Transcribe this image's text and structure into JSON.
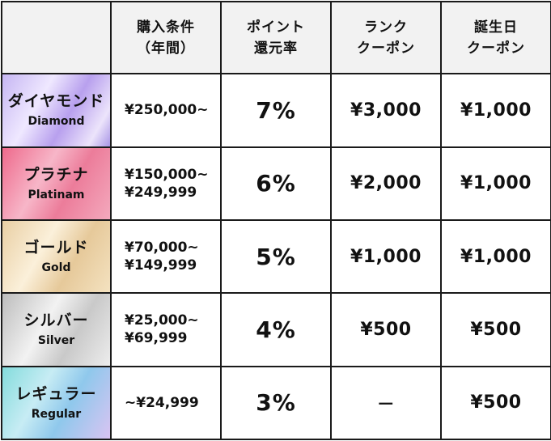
{
  "header": {
    "rank": "",
    "condition_line1": "購入条件",
    "condition_line2": "（年間）",
    "point_line1": "ポイント",
    "point_line2": "還元率",
    "rank_coupon_line1": "ランク",
    "rank_coupon_line2": "クーポン",
    "birthday_coupon_line1": "誕生日",
    "birthday_coupon_line2": "クーポン"
  },
  "rows": [
    {
      "key": "diamond",
      "name_jp": "ダイヤモンド",
      "name_en": "Diamond",
      "condition_line1": "¥250,000~",
      "condition_line2": "",
      "rate": "7%",
      "rank_coupon": "¥3,000",
      "birthday_coupon": "¥1,000",
      "color": "#c6b6f3"
    },
    {
      "key": "platinum",
      "name_jp": "プラチナ",
      "name_en": "Platinam",
      "condition_line1": "¥150,000~",
      "condition_line2": "¥249,999",
      "rate": "6%",
      "rank_coupon": "¥2,000",
      "birthday_coupon": "¥1,000",
      "color": "#ee6a8c"
    },
    {
      "key": "gold",
      "name_jp": "ゴールド",
      "name_en": "Gold",
      "condition_line1": "¥70,000~",
      "condition_line2": "¥149,999",
      "rate": "5%",
      "rank_coupon": "¥1,000",
      "birthday_coupon": "¥1,000",
      "color": "#e9cfa4"
    },
    {
      "key": "silver",
      "name_jp": "シルバー",
      "name_en": "Silver",
      "condition_line1": "¥25,000~",
      "condition_line2": "¥69,999",
      "rate": "4%",
      "rank_coupon": "¥500",
      "birthday_coupon": "¥500",
      "color": "#c9c9c9"
    },
    {
      "key": "regular",
      "name_jp": "レギュラー",
      "name_en": "Regular",
      "condition_line1": "~¥24,999",
      "condition_line2": "",
      "rate": "3%",
      "rank_coupon": "－",
      "birthday_coupon": "¥500",
      "color": "#84dcdc"
    }
  ]
}
